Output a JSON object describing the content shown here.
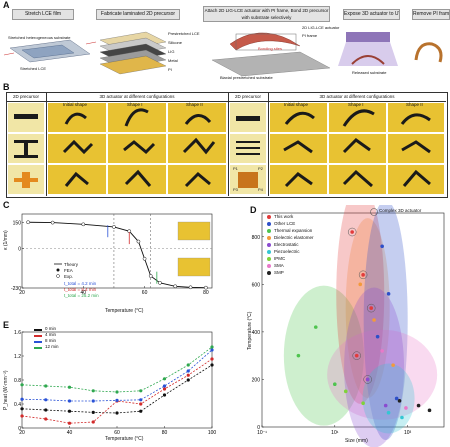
{
  "panel_letters": {
    "a": "A",
    "b": "B",
    "c": "C",
    "d": "D",
    "e": "E"
  },
  "panelA": {
    "steps": [
      "Stretch LCE film",
      "Fabricate laminated 2D precursor",
      "Attach 2D LIG-LCE actuator with PI frame, Bond 2D precursor with substrate selectively",
      "Expose 3D actuator to UV",
      "Remove PI frame"
    ],
    "labels": {
      "stretched_hetero": "Stretched heterogeneous substrate",
      "stretched_lce": "Stretched LCE",
      "prestretched_lce": "Prestretched LCE",
      "silicone": "Silicone",
      "lig": "LIG",
      "metal": "Metal",
      "pi": "PI",
      "lce_actuator": "2D LIG-LCE actuator",
      "pi_frame": "PI frame",
      "bond_sites": "Bonding sites",
      "biaxial": "Biaxial prestretched substrate",
      "released": "Released substrate"
    }
  },
  "panelB": {
    "headers": [
      "2D precursor",
      "3D actuator at different configurations",
      "2D precursor",
      "3D actuator at different configurations"
    ],
    "sub_left": [
      "Initial shape",
      "Shape I",
      "Shape II"
    ],
    "sub_right": [
      "Initial shape",
      "Shape I",
      "Shape II"
    ],
    "marks": [
      "P1",
      "P2",
      "P3",
      "P4"
    ]
  },
  "panelC": {
    "ylabel": "κ (1/mm)",
    "xlabel": "Temperature (°C)",
    "legend": [
      "Theory",
      "FEA",
      "Exp."
    ],
    "rates": [
      "t_total = 4.2 min",
      "t_total = 8.4 min",
      "t_total = 25.2 min"
    ],
    "colors": {
      "theory": "#111111",
      "r1": "#2a52d6",
      "r2": "#d22b2b",
      "r3": "#2fa84f"
    },
    "chart_data": {
      "type": "line",
      "x": [
        22,
        30,
        40,
        50,
        55,
        58,
        60,
        62,
        65,
        70,
        75,
        80
      ],
      "series": [
        {
          "name": "Theory",
          "values": [
            152,
            150,
            140,
            125,
            100,
            40,
            -60,
            -160,
            -200,
            -220,
            -226,
            -228
          ]
        }
      ],
      "xlim": [
        20,
        82
      ],
      "ylim": [
        -230,
        200
      ],
      "xticks": [
        20,
        40,
        60,
        80
      ],
      "yticks": [
        150,
        0,
        -230
      ],
      "ytick_labels": [
        "150",
        "0",
        "-230"
      ]
    }
  },
  "panelD": {
    "ylabel": "Temperature (°C)",
    "xlabel": "Size (mm)",
    "legend_items": [
      {
        "label": "This work",
        "color": "#e23b3b"
      },
      {
        "label": "Other LCE",
        "color": "#2d4fc9"
      },
      {
        "label": "Thermal expansion",
        "color": "#4fc44f"
      },
      {
        "label": "Dielectric elastomer",
        "color": "#f39a3b"
      },
      {
        "label": "Electrostatic",
        "color": "#8a4bd0"
      },
      {
        "label": "Piezoelectric",
        "color": "#34c6d3"
      },
      {
        "label": "IPMC",
        "color": "#7fd23a"
      },
      {
        "label": "SMA",
        "color": "#e879c9"
      },
      {
        "label": "SMP",
        "color": "#222222"
      }
    ],
    "complex_label": "Complex 3D actuator",
    "chart_data": {
      "type": "scatter",
      "xscale": "log",
      "xlim": [
        0.1,
        10000
      ],
      "ylim": [
        0,
        900
      ],
      "yticks": [
        0,
        200,
        400,
        600,
        800
      ],
      "xtick_labels": [
        "10⁻¹",
        "10¹",
        "10³"
      ],
      "series": [
        {
          "name": "This work",
          "x": [
            30,
            60,
            100,
            80,
            40
          ],
          "y": [
            820,
            640,
            500,
            200,
            300
          ]
        },
        {
          "name": "Other LCE",
          "x": [
            200,
            300,
            150,
            500
          ],
          "y": [
            760,
            560,
            380,
            120
          ]
        },
        {
          "name": "Thermal expansion",
          "x": [
            1,
            3,
            10
          ],
          "y": [
            300,
            420,
            180
          ]
        },
        {
          "name": "Dielectric elastomer",
          "x": [
            50,
            120,
            400
          ],
          "y": [
            600,
            450,
            260
          ]
        },
        {
          "name": "Electrostatic",
          "x": [
            80,
            250
          ],
          "y": [
            200,
            90
          ]
        },
        {
          "name": "Piezoelectric",
          "x": [
            300,
            700
          ],
          "y": [
            60,
            40
          ]
        },
        {
          "name": "IPMC",
          "x": [
            20,
            60
          ],
          "y": [
            150,
            100
          ]
        },
        {
          "name": "SMA",
          "x": [
            200,
            900
          ],
          "y": [
            320,
            80
          ]
        },
        {
          "name": "SMP",
          "x": [
            600,
            2000,
            4000
          ],
          "y": [
            110,
            90,
            70
          ]
        }
      ]
    }
  },
  "panelE": {
    "ylabel": "P_heat (W·mm⁻²)",
    "xlabel": "Temperature (°C)",
    "chart_data": {
      "type": "line",
      "x": [
        20,
        30,
        40,
        50,
        60,
        70,
        80,
        90,
        100
      ],
      "series": [
        {
          "name": "0 min",
          "color": "#111111",
          "values": [
            0.32,
            0.3,
            0.28,
            0.26,
            0.25,
            0.28,
            0.55,
            0.8,
            1.05
          ]
        },
        {
          "name": "4 min",
          "color": "#d22b2b",
          "values": [
            0.2,
            0.15,
            0.08,
            0.1,
            0.45,
            0.4,
            0.65,
            0.88,
            1.15
          ]
        },
        {
          "name": "8 min",
          "color": "#2a52d6",
          "values": [
            0.48,
            0.47,
            0.45,
            0.45,
            0.46,
            0.47,
            0.7,
            0.95,
            1.3
          ]
        },
        {
          "name": "12 min",
          "color": "#2fa84f",
          "values": [
            0.72,
            0.7,
            0.68,
            0.62,
            0.6,
            0.62,
            0.82,
            1.05,
            1.35
          ]
        }
      ],
      "xlim": [
        20,
        100
      ],
      "ylim": [
        0,
        1.6
      ],
      "xticks": [
        20,
        40,
        60,
        80,
        100
      ],
      "yticks": [
        0,
        0.4,
        0.8,
        1.2,
        1.6
      ]
    }
  }
}
